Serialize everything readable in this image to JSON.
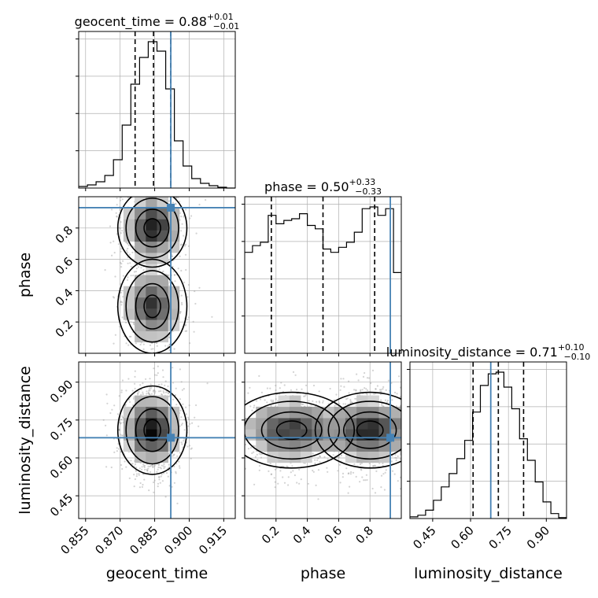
{
  "chart_data": {
    "type": "corner",
    "parameters": [
      {
        "name": "geocent_time",
        "xlabel": "geocent_time",
        "range": [
          0.852,
          0.92
        ],
        "ticks": [
          "0.855",
          "0.870",
          "0.885",
          "0.900",
          "0.915"
        ],
        "title": {
          "base": "geocent_time = 0.88",
          "sup": "+0.01",
          "sub": "−0.01"
        },
        "quantiles": [
          0.8765,
          0.8845,
          0.892
        ],
        "truth": 0.892,
        "hist": [
          0.01,
          0.02,
          0.04,
          0.08,
          0.18,
          0.4,
          0.66,
          0.83,
          0.93,
          0.87,
          0.63,
          0.3,
          0.14,
          0.06,
          0.03,
          0.015,
          0.005,
          0.0
        ]
      },
      {
        "name": "phase",
        "xlabel": "phase",
        "ylabel": "phase",
        "range": [
          0.0,
          1.0
        ],
        "ticks": [
          "0.2",
          "0.4",
          "0.6",
          "0.8"
        ],
        "title": {
          "base": "phase = 0.50",
          "sup": "+0.33",
          "sub": "−0.33"
        },
        "quantiles": [
          0.17,
          0.5,
          0.83
        ],
        "truth": 0.93,
        "hist": [
          0.6,
          0.64,
          0.66,
          0.82,
          0.77,
          0.79,
          0.8,
          0.83,
          0.76,
          0.74,
          0.62,
          0.6,
          0.63,
          0.66,
          0.72,
          0.86,
          0.87,
          0.82,
          0.86,
          0.48
        ]
      },
      {
        "name": "luminosity_distance",
        "xlabel": "luminosity_distance",
        "ylabel": "luminosity_distance",
        "range": [
          0.36,
          0.98
        ],
        "ticks": [
          "0.45",
          "0.60",
          "0.75",
          "0.90"
        ],
        "ytick_labels": [
          "0.45",
          "0.60",
          "0.75",
          "0.90"
        ],
        "title": {
          "base": "luminosity_distance = 0.71",
          "sup": "+0.10",
          "sub": "−0.10"
        },
        "quantiles": [
          0.61,
          0.71,
          0.81
        ],
        "truth": 0.68,
        "hist": [
          0.01,
          0.02,
          0.05,
          0.11,
          0.19,
          0.27,
          0.36,
          0.47,
          0.64,
          0.8,
          0.87,
          0.88,
          0.79,
          0.66,
          0.48,
          0.35,
          0.22,
          0.1,
          0.03,
          0.005
        ]
      }
    ],
    "colors": {
      "truth": "#4682b4",
      "contour": "#000000",
      "scatter": "#9e9e9e",
      "grid": "#b0b0b0"
    }
  }
}
